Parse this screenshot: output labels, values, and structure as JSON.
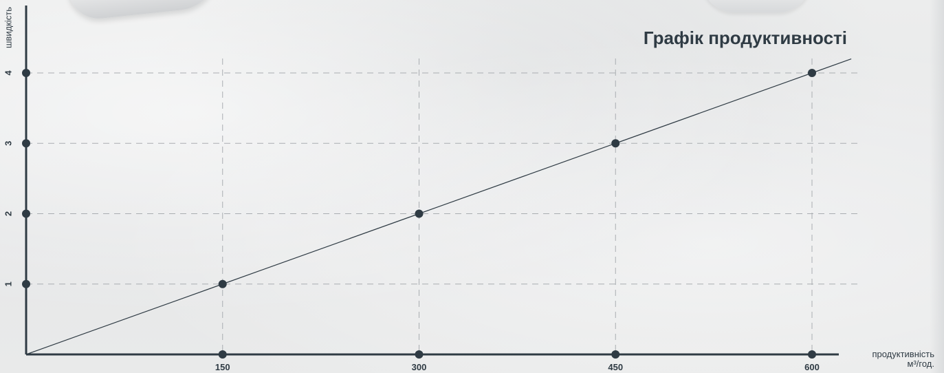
{
  "chart_data": {
    "type": "line",
    "title": "Графік продуктивності",
    "ylabel": "швидкість",
    "xlabel_line1": "продуктивність",
    "xlabel_line2": "м³/год.",
    "x_ticks": [
      150,
      300,
      450,
      600
    ],
    "y_ticks": [
      1,
      2,
      3,
      4
    ],
    "xlim": [
      0,
      600
    ],
    "ylim": [
      0,
      4
    ],
    "grid": true,
    "series": [
      {
        "x": [
          0,
          150,
          300,
          450,
          600,
          630
        ],
        "y": [
          0,
          1,
          2,
          3,
          4,
          4.2
        ]
      }
    ],
    "points": [
      {
        "x": 150,
        "y": 1
      },
      {
        "x": 300,
        "y": 2
      },
      {
        "x": 450,
        "y": 3
      },
      {
        "x": 600,
        "y": 4
      }
    ],
    "colors": {
      "axis": "#2f3b44",
      "line": "#2f3b44",
      "grid": "#a9adb1",
      "text": "#2f3b44"
    }
  }
}
